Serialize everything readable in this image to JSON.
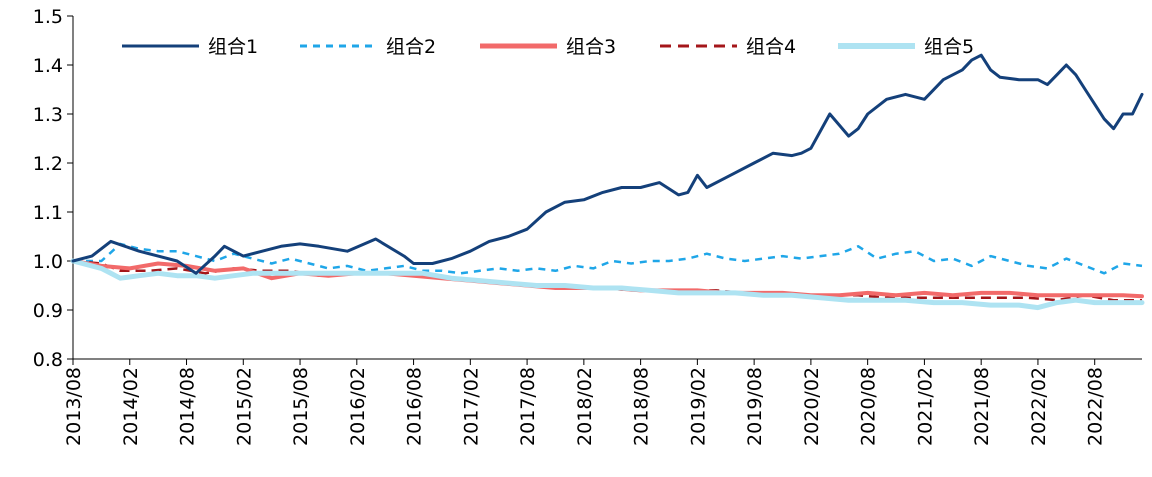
{
  "chart_data": {
    "type": "line",
    "title": "",
    "xlabel": "",
    "ylabel": "",
    "ylim": [
      0.8,
      1.5
    ],
    "yticks": [
      0.8,
      0.9,
      1.0,
      1.1,
      1.2,
      1.3,
      1.4,
      1.5
    ],
    "ytick_labels": [
      "0.8",
      "0.9",
      "1.0",
      "1.1",
      "1.2",
      "1.3",
      "1.4",
      "1.5"
    ],
    "xlim_months": [
      0,
      113
    ],
    "xtick_labels": [
      "2013/08",
      "2014/02",
      "2014/08",
      "2015/02",
      "2015/08",
      "2016/02",
      "2016/08",
      "2017/02",
      "2017/08",
      "2018/02",
      "2018/08",
      "2019/02",
      "2019/08",
      "2020/02",
      "2020/08",
      "2021/02",
      "2021/08",
      "2022/02",
      "2022/08"
    ],
    "legend_position": "top",
    "series": [
      {
        "name": "组合1",
        "color": "#14407a",
        "style": "solid",
        "x": [
          0,
          2,
          4,
          5.5,
          7,
          9,
          11,
          13,
          15,
          16,
          17,
          18,
          20,
          22,
          24,
          26,
          29,
          32,
          35,
          36,
          38,
          40,
          42,
          44,
          46,
          48,
          50,
          52,
          54,
          56,
          58,
          60,
          62,
          64,
          65,
          66,
          67,
          69,
          70,
          72,
          74,
          76,
          77,
          78,
          80,
          82,
          83,
          84,
          86,
          88,
          90,
          92,
          94,
          95,
          96,
          97,
          98,
          100,
          102,
          103,
          104,
          105,
          106,
          107,
          108,
          109,
          110,
          111,
          112,
          113
        ],
        "y": [
          1.0,
          1.01,
          1.04,
          1.03,
          1.02,
          1.01,
          1.0,
          0.975,
          1.01,
          1.03,
          1.02,
          1.01,
          1.02,
          1.03,
          1.035,
          1.03,
          1.02,
          1.045,
          1.01,
          0.995,
          0.995,
          1.005,
          1.02,
          1.04,
          1.05,
          1.065,
          1.1,
          1.12,
          1.125,
          1.14,
          1.15,
          1.15,
          1.16,
          1.135,
          1.14,
          1.175,
          1.15,
          1.17,
          1.18,
          1.2,
          1.22,
          1.215,
          1.22,
          1.23,
          1.3,
          1.255,
          1.27,
          1.3,
          1.33,
          1.34,
          1.33,
          1.37,
          1.39,
          1.41,
          1.42,
          1.39,
          1.375,
          1.37,
          1.37,
          1.36,
          1.38,
          1.4,
          1.38,
          1.35,
          1.32,
          1.29,
          1.27,
          1.3,
          1.3,
          1.34
        ]
      },
      {
        "name": "组合2",
        "color": "#1fa6e8",
        "style": "dashed",
        "x": [
          0,
          3,
          5,
          7,
          9,
          11,
          13,
          15,
          17,
          19,
          21,
          23,
          25,
          27,
          29,
          31,
          33,
          35,
          37,
          39,
          41,
          43,
          45,
          47,
          49,
          51,
          53,
          55,
          57,
          59,
          61,
          63,
          65,
          67,
          69,
          71,
          73,
          75,
          77,
          79,
          81,
          83,
          85,
          87,
          89,
          91,
          93,
          95,
          97,
          99,
          101,
          103,
          105,
          107,
          109,
          111,
          113
        ],
        "y": [
          1.0,
          1.0,
          1.035,
          1.025,
          1.02,
          1.02,
          1.01,
          1.0,
          1.015,
          1.005,
          0.995,
          1.005,
          0.995,
          0.985,
          0.99,
          0.98,
          0.985,
          0.99,
          0.98,
          0.98,
          0.975,
          0.98,
          0.985,
          0.98,
          0.985,
          0.98,
          0.99,
          0.985,
          1.0,
          0.995,
          1.0,
          1.0,
          1.005,
          1.015,
          1.005,
          1.0,
          1.005,
          1.01,
          1.005,
          1.01,
          1.015,
          1.03,
          1.005,
          1.015,
          1.02,
          1.0,
          1.005,
          0.99,
          1.01,
          1.0,
          0.99,
          0.985,
          1.005,
          0.99,
          0.975,
          0.995,
          0.99
        ]
      },
      {
        "name": "组合3",
        "color": "#f26a6a",
        "style": "solid",
        "x": [
          0,
          3,
          6,
          9,
          12,
          15,
          18,
          21,
          24,
          27,
          30,
          33,
          36,
          39,
          42,
          45,
          48,
          51,
          54,
          57,
          60,
          63,
          66,
          69,
          72,
          75,
          78,
          81,
          84,
          87,
          90,
          93,
          96,
          99,
          102,
          105,
          108,
          111,
          113
        ],
        "y": [
          1.0,
          0.99,
          0.985,
          0.995,
          0.99,
          0.98,
          0.985,
          0.965,
          0.975,
          0.97,
          0.975,
          0.975,
          0.97,
          0.965,
          0.96,
          0.955,
          0.95,
          0.945,
          0.945,
          0.945,
          0.94,
          0.94,
          0.94,
          0.935,
          0.935,
          0.935,
          0.93,
          0.93,
          0.935,
          0.93,
          0.935,
          0.93,
          0.935,
          0.935,
          0.93,
          0.93,
          0.93,
          0.93,
          0.928
        ]
      },
      {
        "name": "组合4",
        "color": "#a4161a",
        "style": "dashed",
        "x": [
          0,
          3,
          5,
          8,
          11,
          14,
          17,
          20,
          23,
          26,
          29,
          32,
          35,
          38,
          41,
          44,
          47,
          50,
          53,
          56,
          59,
          62,
          65,
          68,
          71,
          74,
          77,
          80,
          83,
          86,
          89,
          92,
          95,
          98,
          101,
          104,
          107,
          110,
          113
        ],
        "y": [
          1.0,
          0.995,
          0.98,
          0.98,
          0.985,
          0.975,
          0.985,
          0.98,
          0.98,
          0.97,
          0.975,
          0.975,
          0.975,
          0.97,
          0.965,
          0.96,
          0.955,
          0.95,
          0.945,
          0.945,
          0.94,
          0.94,
          0.94,
          0.94,
          0.935,
          0.935,
          0.93,
          0.93,
          0.93,
          0.925,
          0.925,
          0.925,
          0.925,
          0.925,
          0.925,
          0.92,
          0.93,
          0.92,
          0.92
        ]
      },
      {
        "name": "组合5",
        "color": "#aee3f2",
        "style": "solid",
        "x": [
          0,
          3,
          5,
          7,
          9,
          11,
          13,
          15,
          17,
          19,
          22,
          25,
          28,
          31,
          34,
          37,
          40,
          43,
          46,
          49,
          52,
          55,
          58,
          61,
          64,
          67,
          70,
          73,
          76,
          79,
          82,
          85,
          88,
          91,
          94,
          97,
          100,
          102,
          104,
          106,
          108,
          110,
          113
        ],
        "y": [
          1.0,
          0.985,
          0.965,
          0.97,
          0.975,
          0.97,
          0.97,
          0.965,
          0.97,
          0.975,
          0.975,
          0.975,
          0.975,
          0.975,
          0.975,
          0.975,
          0.965,
          0.96,
          0.955,
          0.95,
          0.95,
          0.945,
          0.945,
          0.94,
          0.935,
          0.935,
          0.935,
          0.93,
          0.93,
          0.925,
          0.92,
          0.92,
          0.92,
          0.915,
          0.915,
          0.91,
          0.91,
          0.905,
          0.915,
          0.92,
          0.915,
          0.915,
          0.915
        ]
      }
    ]
  }
}
